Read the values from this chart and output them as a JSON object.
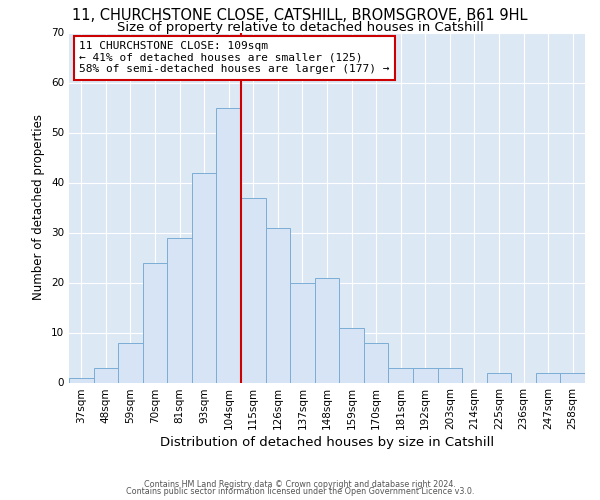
{
  "title": "11, CHURCHSTONE CLOSE, CATSHILL, BROMSGROVE, B61 9HL",
  "subtitle": "Size of property relative to detached houses in Catshill",
  "xlabel": "Distribution of detached houses by size in Catshill",
  "ylabel": "Number of detached properties",
  "bar_labels": [
    "37sqm",
    "48sqm",
    "59sqm",
    "70sqm",
    "81sqm",
    "93sqm",
    "104sqm",
    "115sqm",
    "126sqm",
    "137sqm",
    "148sqm",
    "159sqm",
    "170sqm",
    "181sqm",
    "192sqm",
    "203sqm",
    "214sqm",
    "225sqm",
    "236sqm",
    "247sqm",
    "258sqm"
  ],
  "bar_values": [
    1,
    3,
    8,
    24,
    29,
    42,
    55,
    37,
    31,
    20,
    21,
    11,
    8,
    3,
    3,
    3,
    0,
    2,
    0,
    2,
    2
  ],
  "bar_color": "#d6e4f5",
  "bar_edge_color": "#7badd6",
  "annotation_line1": "11 CHURCHSTONE CLOSE: 109sqm",
  "annotation_line2": "← 41% of detached houses are smaller (125)",
  "annotation_line3": "58% of semi-detached houses are larger (177) →",
  "vline_x_index": 6.5,
  "annotation_box_color": "#ffffff",
  "annotation_box_edge": "#cc0000",
  "vline_color": "#cc0000",
  "background_color": "#dde8f5",
  "footer_line1": "Contains HM Land Registry data © Crown copyright and database right 2024.",
  "footer_line2": "Contains public sector information licensed under the Open Government Licence v3.0.",
  "ylim": [
    0,
    70
  ],
  "title_fontsize": 10.5,
  "subtitle_fontsize": 9.5,
  "ylabel_fontsize": 8.5,
  "xlabel_fontsize": 9.5,
  "tick_fontsize": 7.5,
  "annotation_fontsize": 8
}
